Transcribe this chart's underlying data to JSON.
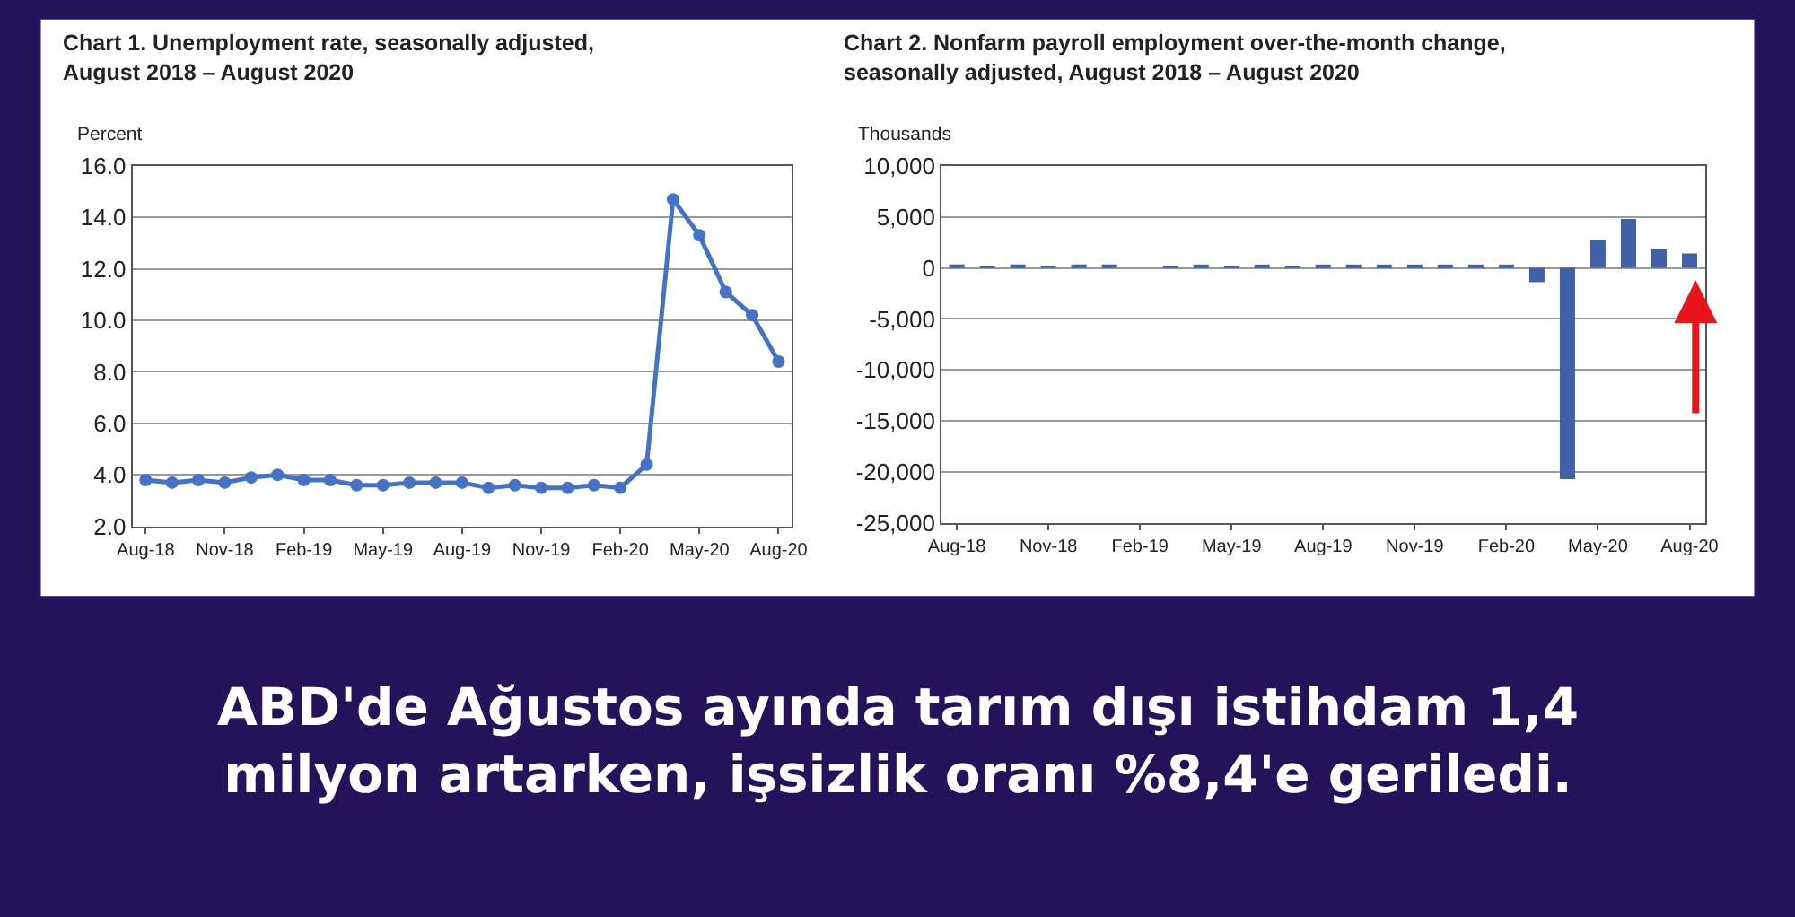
{
  "chart_data": [
    {
      "type": "line",
      "title": "Chart 1. Unemployment rate, seasonally adjusted,\nAugust 2018 – August 2020",
      "ylabel": "Percent",
      "categories": [
        "Aug-18",
        null,
        null,
        "Nov-18",
        null,
        null,
        "Feb-19",
        null,
        null,
        "May-19",
        null,
        null,
        "Aug-19",
        null,
        null,
        "Nov-19",
        null,
        null,
        "Feb-20",
        null,
        null,
        "May-20",
        null,
        null,
        "Aug-20"
      ],
      "series": [
        {
          "color": "#4472c4",
          "values": [
            3.8,
            3.7,
            3.8,
            3.7,
            3.9,
            4.0,
            3.8,
            3.8,
            3.6,
            3.6,
            3.7,
            3.7,
            3.7,
            3.5,
            3.6,
            3.5,
            3.5,
            3.6,
            3.5,
            4.4,
            14.7,
            13.3,
            11.1,
            10.2,
            8.4
          ]
        }
      ],
      "ylim": [
        2,
        16
      ],
      "yticks": [
        {
          "value": 2,
          "label": "2.0"
        },
        {
          "value": 4,
          "label": "4.0"
        },
        {
          "value": 6,
          "label": "6.0"
        },
        {
          "value": 8,
          "label": "8.0"
        },
        {
          "value": 10,
          "label": "10.0"
        },
        {
          "value": 12,
          "label": "12.0"
        },
        {
          "value": 14,
          "label": "14.0"
        },
        {
          "value": 16,
          "label": "16.0"
        }
      ],
      "grid": "y",
      "marker": "circle",
      "line_style": "solid"
    },
    {
      "type": "bar",
      "title": "Chart 2. Nonfarm payroll employment over-the-month change,\nseasonally adjusted, August 2018 – August 2020",
      "ylabel": "Thousands",
      "categories": [
        "Aug-18",
        null,
        null,
        "Nov-18",
        null,
        null,
        "Feb-19",
        null,
        null,
        "May-19",
        null,
        null,
        "Aug-19",
        null,
        null,
        "Nov-19",
        null,
        null,
        "Feb-20",
        null,
        null,
        "May-20",
        null,
        null,
        "Aug-20"
      ],
      "series": [
        {
          "color": "#4060a8",
          "values": [
            200,
            100,
            200,
            100,
            200,
            300,
            0,
            100,
            200,
            100,
            200,
            100,
            200,
            200,
            200,
            300,
            200,
            300,
            300,
            -1400,
            -20700,
            2700,
            4800,
            1800,
            1400
          ]
        }
      ],
      "ylim": [
        -25000,
        10000
      ],
      "yticks": [
        {
          "value": -25000,
          "label": "-25,000"
        },
        {
          "value": -20000,
          "label": "-20,000"
        },
        {
          "value": -15000,
          "label": "-15,000"
        },
        {
          "value": -10000,
          "label": "-10,000"
        },
        {
          "value": -5000,
          "label": "-5,000"
        },
        0,
        {
          "value": 5000,
          "label": "5,000"
        },
        {
          "value": 10000,
          "label": "10,000"
        }
      ],
      "grid": "y"
    },
    {
      "type": "other",
      "annotations": [
        "ABD'de Ağustos ayında tarım dışı istihdam 1,4\nmilyon artarken, işsizlik oranı %8,4'e geriledi."
      ]
    }
  ]
}
